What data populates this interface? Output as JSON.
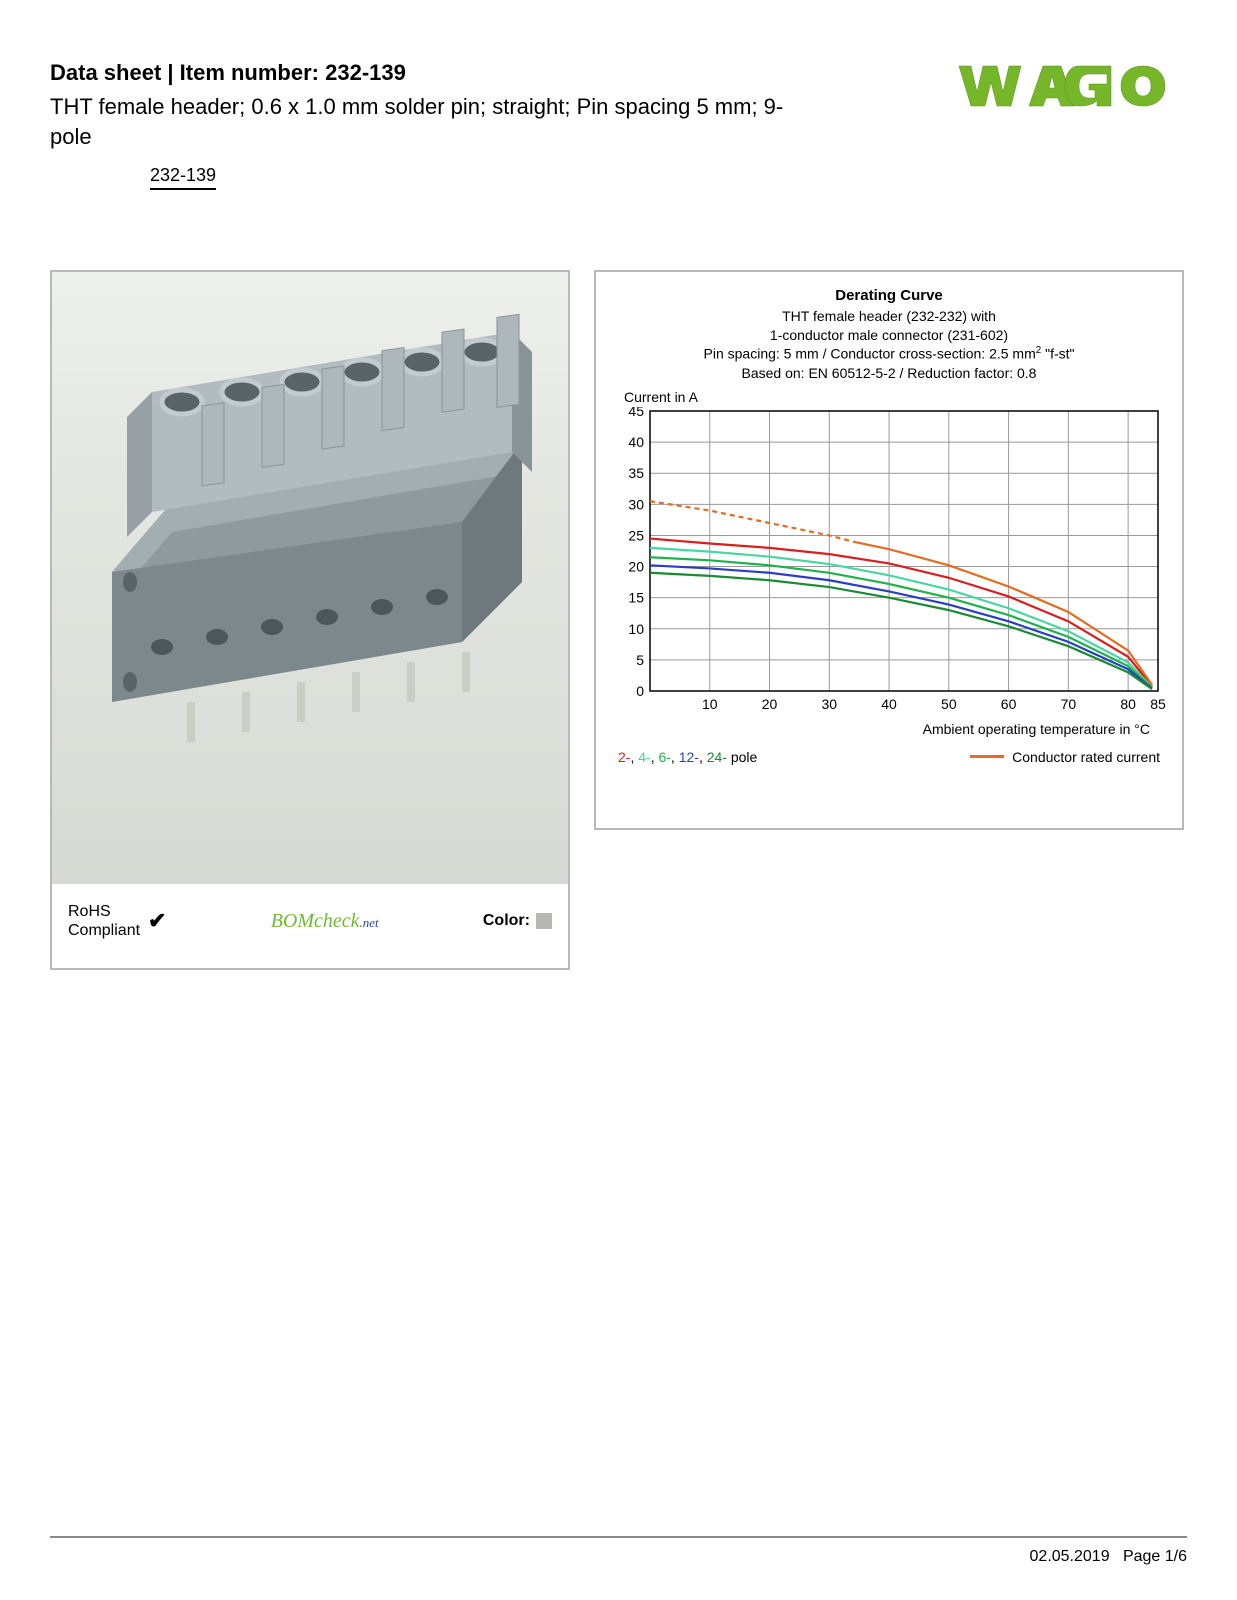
{
  "header": {
    "title_prefix": "Data sheet  |  Item number: ",
    "item_number": "232-139",
    "subtitle": "THT female header; 0.6 x 1.0 mm solder pin; straight; Pin spacing 5 mm; 9-pole",
    "part_link": "232-139"
  },
  "logo": {
    "text": "WAGO",
    "fill": "#76b72a",
    "stroke": "#666666"
  },
  "product_panel": {
    "rohs_label_1": "RoHS",
    "rohs_label_2": "Compliant",
    "bomcheck_label": "BOMcheck",
    "bomcheck_suffix": ".net",
    "color_label": "Color:",
    "color_swatch": "#b5b8b1",
    "connector_body": "#a3aeb3",
    "connector_shadow": "#7d888d",
    "connector_light": "#c2ccd0",
    "pin_color": "#c9cfc4"
  },
  "chart": {
    "title": "Derating Curve",
    "line1": "THT female header (232-232) with",
    "line2": "1-conductor male connector (231-602)",
    "line3_a": "Pin spacing: 5 mm / Conductor cross-section: 2.5 mm",
    "line3_b": " \"f-st\"",
    "line4": "Based on: EN 60512-5-2 / Reduction factor: 0.8",
    "y_axis_label": "Current in A",
    "x_axis_label": "Ambient operating temperature in °C",
    "legend_series_html": "2-, 4-, 6-, 12-, 24- pole",
    "legend_conductor": "Conductor rated current",
    "xlim": [
      0,
      85
    ],
    "ylim": [
      0,
      45
    ],
    "xticks": [
      10,
      20,
      30,
      40,
      50,
      60,
      70,
      80,
      85
    ],
    "yticks": [
      0,
      5,
      10,
      15,
      20,
      25,
      30,
      35,
      40,
      45
    ],
    "grid_color": "#999999",
    "border_color": "#000000",
    "series": [
      {
        "name": "2-pole",
        "color": "#d81e1e",
        "dash": "none",
        "points": [
          [
            0,
            24.5
          ],
          [
            10,
            23.7
          ],
          [
            20,
            23.0
          ],
          [
            30,
            22.0
          ],
          [
            40,
            20.5
          ],
          [
            50,
            18.2
          ],
          [
            60,
            15.2
          ],
          [
            70,
            11.2
          ],
          [
            80,
            5.5
          ],
          [
            84,
            0.8
          ]
        ]
      },
      {
        "name": "4-pole",
        "color": "#49d6a0",
        "dash": "none",
        "points": [
          [
            0,
            23.0
          ],
          [
            10,
            22.4
          ],
          [
            20,
            21.6
          ],
          [
            30,
            20.4
          ],
          [
            40,
            18.6
          ],
          [
            50,
            16.3
          ],
          [
            60,
            13.3
          ],
          [
            70,
            9.6
          ],
          [
            80,
            4.6
          ],
          [
            84,
            0.6
          ]
        ]
      },
      {
        "name": "6-pole",
        "color": "#1eb24b",
        "dash": "none",
        "points": [
          [
            0,
            21.5
          ],
          [
            10,
            21.0
          ],
          [
            20,
            20.2
          ],
          [
            30,
            19.0
          ],
          [
            40,
            17.2
          ],
          [
            50,
            15.0
          ],
          [
            60,
            12.2
          ],
          [
            70,
            8.7
          ],
          [
            80,
            4.0
          ],
          [
            84,
            0.5
          ]
        ]
      },
      {
        "name": "12-pole",
        "color": "#2a3fbf",
        "dash": "none",
        "points": [
          [
            0,
            20.2
          ],
          [
            10,
            19.7
          ],
          [
            20,
            19.0
          ],
          [
            30,
            17.8
          ],
          [
            40,
            16.0
          ],
          [
            50,
            13.9
          ],
          [
            60,
            11.2
          ],
          [
            70,
            7.9
          ],
          [
            80,
            3.5
          ],
          [
            84,
            0.4
          ]
        ]
      },
      {
        "name": "24-pole",
        "color": "#1a8a33",
        "dash": "none",
        "points": [
          [
            0,
            19.0
          ],
          [
            10,
            18.5
          ],
          [
            20,
            17.8
          ],
          [
            30,
            16.7
          ],
          [
            40,
            15.0
          ],
          [
            50,
            13.0
          ],
          [
            60,
            10.4
          ],
          [
            70,
            7.2
          ],
          [
            80,
            3.0
          ],
          [
            84,
            0.3
          ]
        ]
      },
      {
        "name": "conductor-rated",
        "color": "#e66a1f",
        "dash": "5,4",
        "points": [
          [
            0,
            30.5
          ],
          [
            10,
            29.0
          ],
          [
            20,
            27.0
          ],
          [
            30,
            25.0
          ],
          [
            34,
            24.0
          ]
        ]
      },
      {
        "name": "conductor-rated-solid",
        "color": "#e66a1f",
        "dash": "none",
        "points": [
          [
            34,
            24.0
          ],
          [
            40,
            22.8
          ],
          [
            50,
            20.2
          ],
          [
            60,
            16.8
          ],
          [
            70,
            12.7
          ],
          [
            80,
            6.5
          ],
          [
            84,
            1.0
          ]
        ]
      }
    ],
    "legend_colors": {
      "2": "#d81e1e",
      "4": "#49d6a0",
      "6": "#1eb24b",
      "12": "#2a3fbf",
      "24": "#1a8a33"
    }
  },
  "footer": {
    "date": "02.05.2019",
    "page": "Page 1/6"
  }
}
